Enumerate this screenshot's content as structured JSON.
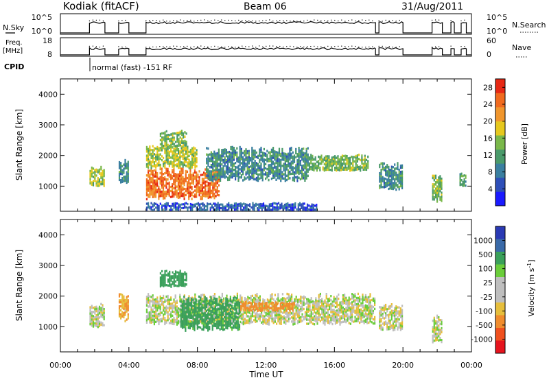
{
  "header": {
    "station": "Kodiak (fitACF)",
    "beam": "Beam 06",
    "date": "31/Aug/2011"
  },
  "summary_panels": {
    "nsky_label": "N.Sky",
    "nsky_ticks": [
      "10^5",
      "10^0"
    ],
    "nsearch_label": "N.Search",
    "nsearch_ticks": [
      "10^5",
      "10^0"
    ],
    "freq_label_1": "Freq.",
    "freq_label_2": "[MHz]",
    "freq_ticks": [
      "18",
      "8"
    ],
    "nave_label": "Nave",
    "nave_ticks": [
      "60",
      "0"
    ],
    "cpid_label": "CPID",
    "cpid_text": "normal (fast) -151 RF"
  },
  "colors": {
    "power_scale": [
      "#1a1aff",
      "#2e4fb8",
      "#3a7fa0",
      "#4a9a6a",
      "#7ab84a",
      "#e6c81e",
      "#f0962d",
      "#f06a1e",
      "#e62814"
    ],
    "velocity_scale": [
      "#e6141e",
      "#f0501e",
      "#f08c2d",
      "#e6be3c",
      "#bebebe",
      "#bebebe",
      "#6acd3a",
      "#3aa05a",
      "#3a6aa8",
      "#2a3ab4"
    ],
    "ground_scatter": "#bebebe"
  },
  "chart_data": [
    {
      "type": "heatmap",
      "title": "Power",
      "xlabel": "",
      "ylabel": "Slant Range [km]",
      "x_ticks": [
        "00:00",
        "04:00",
        "08:00",
        "12:00",
        "16:00",
        "20:00",
        "00:00"
      ],
      "y_ticks": [
        "1000",
        "2000",
        "3000",
        "4000"
      ],
      "xlim": [
        0,
        24
      ],
      "ylim": [
        180,
        4500
      ],
      "colorbar_label": "Power [dB]",
      "colorbar_ticks": [
        "4",
        "8",
        "12",
        "16",
        "20",
        "24",
        "28"
      ],
      "colorbar_range": [
        0,
        30
      ],
      "data_windows_ut": [
        [
          1.7,
          2.6
        ],
        [
          3.4,
          4.0
        ],
        [
          5.0,
          18.4
        ],
        [
          18.6,
          20.0
        ],
        [
          21.7,
          22.3
        ],
        [
          22.8,
          23.0
        ],
        [
          23.4,
          23.7
        ]
      ],
      "features": [
        {
          "t0": 5.0,
          "t1": 9.3,
          "r0": 600,
          "r1": 1500,
          "db": 24
        },
        {
          "t0": 5.0,
          "t1": 8.0,
          "r0": 1600,
          "r1": 2300,
          "db": 16
        },
        {
          "t0": 5.8,
          "t1": 7.4,
          "r0": 2300,
          "r1": 2800,
          "db": 14
        },
        {
          "t0": 8.5,
          "t1": 14.5,
          "r0": 1200,
          "r1": 2200,
          "db": 10
        },
        {
          "t0": 14.5,
          "t1": 18.0,
          "r0": 1500,
          "r1": 2000,
          "db": 14
        },
        {
          "t0": 1.7,
          "t1": 2.6,
          "r0": 1000,
          "r1": 1600,
          "db": 16
        },
        {
          "t0": 3.4,
          "t1": 4.0,
          "r0": 1100,
          "r1": 1800,
          "db": 10
        },
        {
          "t0": 18.6,
          "t1": 20.0,
          "r0": 900,
          "r1": 1700,
          "db": 10
        },
        {
          "t0": 21.7,
          "t1": 22.3,
          "r0": 500,
          "r1": 1300,
          "db": 14
        },
        {
          "t0": 23.3,
          "t1": 23.7,
          "r0": 1000,
          "r1": 1400,
          "db": 12
        },
        {
          "t0": 5.0,
          "t1": 15.0,
          "r0": 200,
          "r1": 450,
          "db": 6
        }
      ]
    },
    {
      "type": "heatmap",
      "title": "Velocity",
      "xlabel": "Time UT",
      "ylabel": "Slant Range [km]",
      "x_ticks": [
        "00:00",
        "04:00",
        "08:00",
        "12:00",
        "16:00",
        "20:00",
        "00:00"
      ],
      "y_ticks": [
        "1000",
        "2000",
        "3000",
        "4000"
      ],
      "xlim": [
        0,
        24
      ],
      "ylim": [
        180,
        4500
      ],
      "colorbar_label": "Velocity [m s^-1]",
      "colorbar_ticks": [
        "1000",
        "500",
        "100",
        "25",
        "-25",
        "-100",
        "-500",
        "-1000"
      ],
      "features": [
        {
          "t0": 5.0,
          "t1": 18.4,
          "r0": 1100,
          "r1": 2000,
          "v": 0
        },
        {
          "t0": 7.0,
          "t1": 10.5,
          "r0": 900,
          "r1": 1900,
          "v": 150
        },
        {
          "t0": 10.5,
          "t1": 13.7,
          "r0": 1500,
          "r1": 1800,
          "v": -150
        },
        {
          "t0": 5.8,
          "t1": 7.4,
          "r0": 2300,
          "r1": 2800,
          "v": 200
        },
        {
          "t0": 1.7,
          "t1": 2.6,
          "r0": 1000,
          "r1": 1700,
          "v": 0
        },
        {
          "t0": 3.4,
          "t1": 4.0,
          "r0": 1200,
          "r1": 2000,
          "v": -80
        },
        {
          "t0": 18.6,
          "t1": 20.0,
          "r0": 900,
          "r1": 1700,
          "v": 0
        },
        {
          "t0": 21.7,
          "t1": 22.3,
          "r0": 500,
          "r1": 1300,
          "v": 0
        }
      ]
    }
  ]
}
